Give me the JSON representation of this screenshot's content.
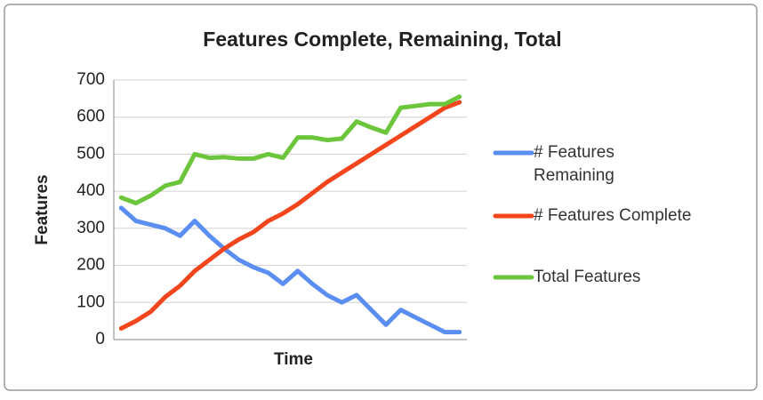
{
  "chart_data": {
    "type": "line",
    "title": "Features Complete, Remaining, Total",
    "x_label": "Time",
    "y_label": "Features",
    "categories": [
      null,
      null,
      null,
      null,
      null,
      null,
      null,
      null,
      null,
      null,
      null,
      null,
      null,
      null,
      null,
      null,
      null,
      null,
      null,
      null,
      null,
      null,
      null,
      null
    ],
    "series": [
      {
        "name": "# Features Remaining",
        "color": "#5b8ef2",
        "values": [
          355,
          320,
          310,
          300,
          280,
          320,
          280,
          245,
          215,
          195,
          180,
          150,
          185,
          150,
          120,
          100,
          120,
          80,
          40,
          80,
          60,
          40,
          20,
          20
        ]
      },
      {
        "name": "# Features Complete",
        "color": "#f4461d",
        "values": [
          30,
          50,
          75,
          115,
          145,
          185,
          215,
          245,
          270,
          290,
          320,
          340,
          365,
          395,
          425,
          450,
          475,
          500,
          525,
          550,
          575,
          600,
          625,
          640
        ]
      },
      {
        "name": "Total Features",
        "color": "#6cc63c",
        "values": [
          383,
          368,
          388,
          415,
          425,
          500,
          490,
          492,
          488,
          488,
          500,
          490,
          545,
          545,
          538,
          542,
          588,
          572,
          558,
          625,
          630,
          635,
          635,
          655
        ]
      }
    ],
    "ylim": [
      0,
      700
    ],
    "yticks": [
      0,
      100,
      200,
      300,
      400,
      500,
      600,
      700
    ],
    "grid": true,
    "legend": "right"
  }
}
